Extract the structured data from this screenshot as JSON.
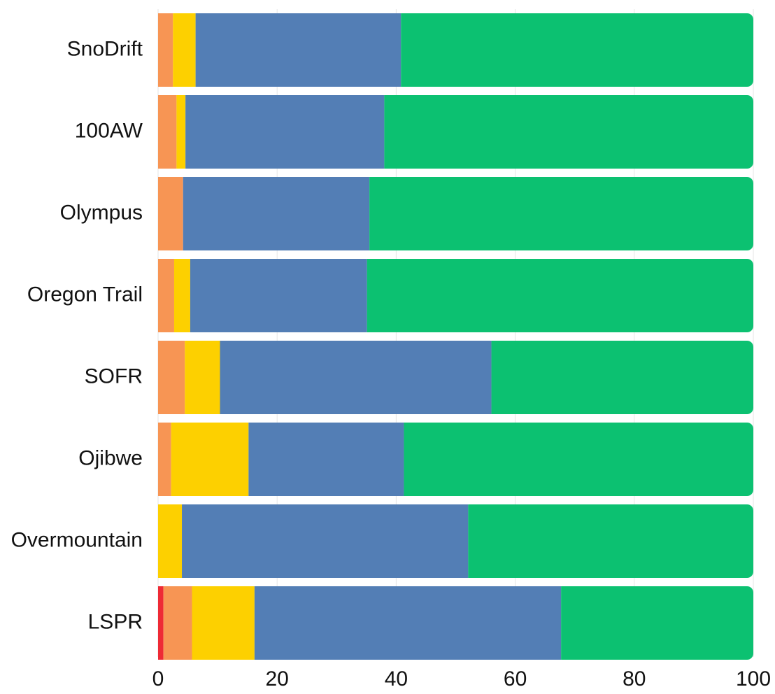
{
  "chart_data": {
    "type": "stacked-barh",
    "categories": [
      "SnoDrift",
      "100AW",
      "Olympus",
      "Oregon Trail",
      "SOFR",
      "Ojibwe",
      "Overmountain",
      "LSPR"
    ],
    "series": [
      {
        "color": "#ee2a35",
        "values": [
          0,
          0,
          0,
          0,
          0,
          0,
          0,
          0.9
        ]
      },
      {
        "color": "#f79554",
        "values": [
          2.5,
          3.1,
          4.2,
          2.7,
          4.5,
          2.2,
          0,
          4.8
        ]
      },
      {
        "color": "#fdd000",
        "values": [
          3.8,
          1.5,
          0,
          2.7,
          5.9,
          13.0,
          4.0,
          10.5
        ]
      },
      {
        "color": "#537eb5",
        "values": [
          34.5,
          33.4,
          31.3,
          29.7,
          45.6,
          26.1,
          48.1,
          51.5
        ]
      },
      {
        "color": "#0cc171",
        "values": [
          59.2,
          62.0,
          64.5,
          64.9,
          44.0,
          58.7,
          47.9,
          32.3
        ]
      }
    ],
    "xlim": [
      0,
      100
    ],
    "xticks": [
      0,
      20,
      40,
      60,
      80,
      100
    ],
    "grid": true
  }
}
